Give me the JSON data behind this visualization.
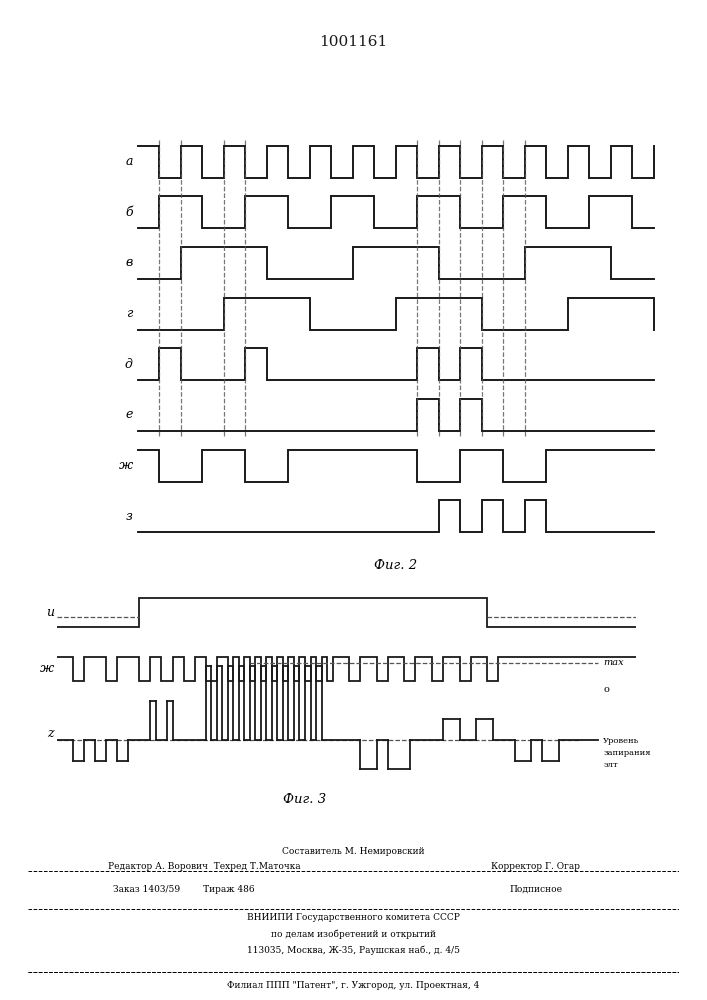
{
  "title": "1001161",
  "fig2_label": "Фиг. 2",
  "fig3_label": "Фиг. 3",
  "background_color": "#ffffff",
  "line_color": "#1a1a1a",
  "dashed_color": "#555555",
  "footer_line1": "Составитель М. Немировский",
  "footer_line2": "Редактор А. Ворович  Техред Т.Маточка",
  "footer_corrector": "Корректор Г. Огар",
  "footer_line3": "Заказ 1403/59        Тираж 486",
  "footer_podp": "Подписное",
  "footer_line4": "ВНИИПИ Государственного комитета СССР",
  "footer_line5": "по делам изобретений и открытий",
  "footer_line6": "113035, Москва, Ж-35, Раушская наб., д. 4/5",
  "footer_line7": "Филиал ППП \"Патент\", г. Ужгород, ул. Проектная, 4",
  "label_max": "max",
  "label_o": "o",
  "label_urovень": "Уровень",
  "label_zapir": "запирания",
  "label_elt": "элт"
}
